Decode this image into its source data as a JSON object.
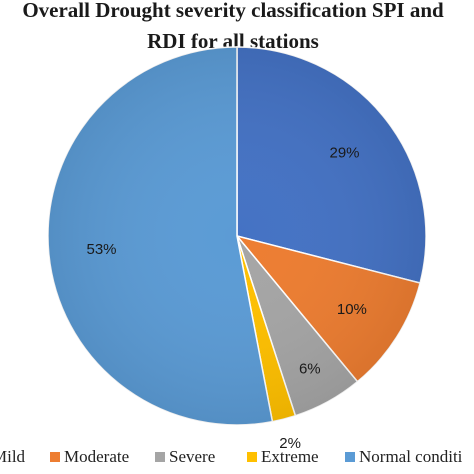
{
  "chart_data": {
    "type": "pie",
    "title_line1": "Overall Drought severity classification SPI and",
    "title_line2": "RDI for all stations",
    "slices": [
      {
        "name": "Mild",
        "value": 29,
        "label": "29%",
        "color": "#4472c4"
      },
      {
        "name": "Moderate",
        "value": 10,
        "label": "10%",
        "color": "#ed7d31"
      },
      {
        "name": "Severe",
        "value": 6,
        "label": "6%",
        "color": "#a5a5a5"
      },
      {
        "name": "Extreme",
        "value": 2,
        "label": "2%",
        "color": "#ffc000"
      },
      {
        "name": "Normal conditi",
        "value": 53,
        "label": "53%",
        "color": "#5b9bd5"
      }
    ],
    "legend": {
      "placement": "bottom",
      "items": [
        "Mild",
        "Moderate",
        "Severe",
        "Extreme",
        "Normal conditi"
      ]
    }
  }
}
